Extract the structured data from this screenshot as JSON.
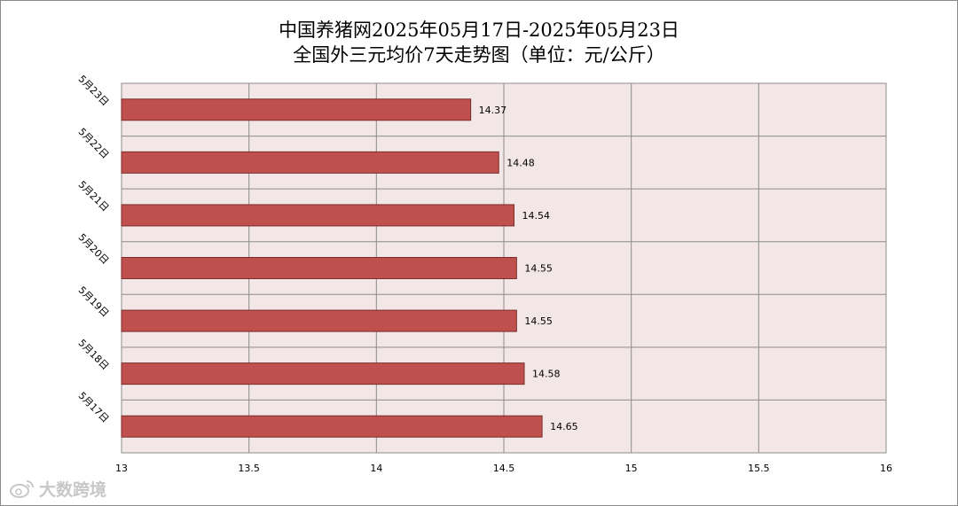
{
  "chart_data": {
    "type": "bar",
    "orientation": "horizontal",
    "title": "中国养猪网2025年05月17日-2025年05月23日",
    "subtitle": "全国外三元均价7天走势图（单位：元/公斤）",
    "categories": [
      "5月23日",
      "5月22日",
      "5月21日",
      "5月20日",
      "5月19日",
      "5月18日",
      "5月17日"
    ],
    "series": [
      {
        "values": [
          14.37,
          14.48,
          14.54,
          14.55,
          14.55,
          14.58,
          14.65
        ]
      }
    ],
    "data_labels": [
      "14.37",
      "14.48",
      "14.54",
      "14.55",
      "14.55",
      "14.58",
      "14.65"
    ],
    "xlim": [
      13,
      16
    ],
    "x_ticks": [
      "13",
      "13.5",
      "14",
      "14.5",
      "15",
      "15.5",
      "16"
    ],
    "grid": true,
    "legend": "none",
    "colors": {
      "bar_fill": "#C0504D",
      "bar_stroke": "#7A2E2B",
      "plot_background": "#F2E6E6",
      "grid": "#8C8C8C"
    }
  },
  "watermark": {
    "text": "大数跨境",
    "icon": "weibo-logo"
  }
}
